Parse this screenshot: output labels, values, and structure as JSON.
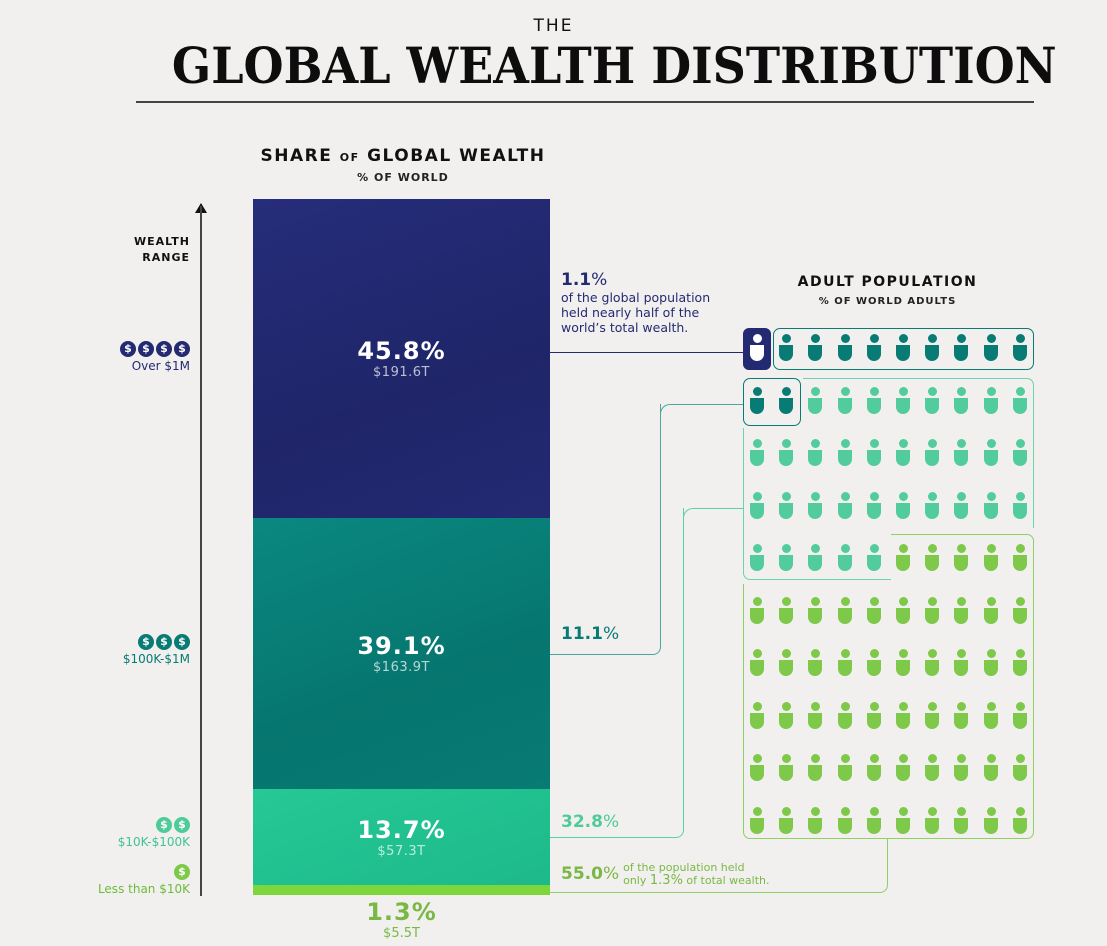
{
  "header": {
    "kicker": "THE",
    "title": "GLOBAL WEALTH DISTRIBUTION"
  },
  "left_panel": {
    "title_part1": "SHARE",
    "title_of": "OF",
    "title_part2": "GLOBAL WEALTH",
    "subtitle": "% OF WORLD",
    "axis_label_line1": "WEALTH",
    "axis_label_line2": "RANGE"
  },
  "tiers": [
    {
      "range": "Over $1M",
      "coins": 4,
      "share_pct": "45.8%",
      "wealth": "$191.6T",
      "pop_pct": "1.1%",
      "color": "#242a72"
    },
    {
      "range": "$100K-$1M",
      "coins": 3,
      "share_pct": "39.1%",
      "wealth": "$163.9T",
      "pop_pct": "11.1%",
      "color": "#087b74"
    },
    {
      "range": "$10K-$100K",
      "coins": 2,
      "share_pct": "13.7%",
      "wealth": "$57.3T",
      "pop_pct": "32.8%",
      "color": "#22c08e"
    },
    {
      "range": "Less than $10K",
      "coins": 1,
      "share_pct": "1.3%",
      "wealth": "$5.5T",
      "pop_pct": "55.0%",
      "color": "#7bc843"
    }
  ],
  "callouts": {
    "top_pct": "1.1",
    "top_pct_sign": "%",
    "top_text_1": "of the global population",
    "top_text_2": "held nearly half of the",
    "top_text_3": "world’s total wealth.",
    "mid_pct": "11.1",
    "mid_pct_sign": "%",
    "low_pct": "32.8",
    "low_pct_sign": "%",
    "bottom_pct": "55.0",
    "bottom_pct_sign": "%",
    "bottom_text_1": "of the population held",
    "bottom_text_2a": "only",
    "bottom_text_2b": "1.3%",
    "bottom_text_2c": "of total wealth."
  },
  "right_panel": {
    "title": "ADULT POPULATION",
    "subtitle": "% OF WORLD ADULTS",
    "grid": {
      "rows": 10,
      "cols": 10,
      "counts": {
        "over_1m": 1,
        "100k_1m": 11,
        "10k_100k": 33,
        "under_10k": 55
      }
    }
  },
  "colors": {
    "navy": "#242a72",
    "teal": "#087b74",
    "mint": "#52cc9c",
    "green": "#7ec84a",
    "background": "#f1f0ee"
  },
  "chart_data": {
    "type": "bar",
    "title": "The Global Wealth Distribution",
    "subtitle": "Share of Global Wealth (% of world) vs Adult Population (% of world adults)",
    "categories": [
      "Over $1M",
      "$100K-$1M",
      "$10K-$100K",
      "Less than $10K"
    ],
    "series": [
      {
        "name": "Share of global wealth (%)",
        "values": [
          45.8,
          39.1,
          13.7,
          1.3
        ]
      },
      {
        "name": "Wealth ($T)",
        "values": [
          191.6,
          163.9,
          57.3,
          5.5
        ]
      },
      {
        "name": "Share of world adults (%)",
        "values": [
          1.1,
          11.1,
          32.8,
          55.0
        ]
      }
    ],
    "xlabel": "Wealth range",
    "ylabel": "% of world",
    "stacked": true,
    "annotations": [
      "1.1% of the global population held nearly half of the world’s total wealth.",
      "55.0% of the population held only 1.3% of total wealth."
    ]
  }
}
